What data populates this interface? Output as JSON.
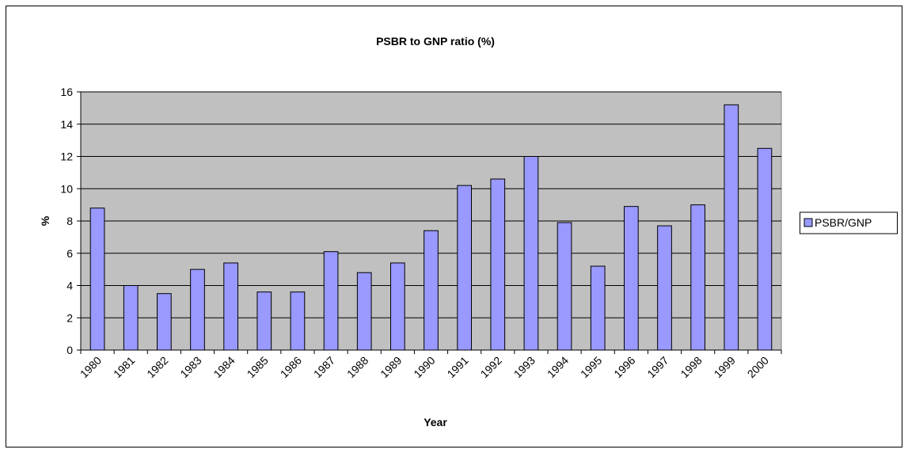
{
  "chart_data": {
    "type": "bar",
    "title": "PSBR to GNP ratio (%)",
    "x_label": "Year",
    "y_label": "%",
    "categories": [
      "1980",
      "1981",
      "1982",
      "1983",
      "1984",
      "1985",
      "1986",
      "1987",
      "1988",
      "1989",
      "1990",
      "1991",
      "1992",
      "1993",
      "1994",
      "1995",
      "1996",
      "1997",
      "1998",
      "1999",
      "2000"
    ],
    "series": [
      {
        "name": "PSBR/GNP",
        "color": "#9999ff",
        "values": [
          8.8,
          4.0,
          3.5,
          5.0,
          5.4,
          3.6,
          3.6,
          6.1,
          4.8,
          5.4,
          7.4,
          10.2,
          10.6,
          12.0,
          7.9,
          5.2,
          8.9,
          7.7,
          9.0,
          15.2,
          12.5
        ]
      }
    ],
    "ylim": [
      0,
      16
    ],
    "yticks": [
      0,
      2,
      4,
      6,
      8,
      10,
      12,
      14,
      16
    ],
    "grid": true,
    "legend": "right"
  }
}
